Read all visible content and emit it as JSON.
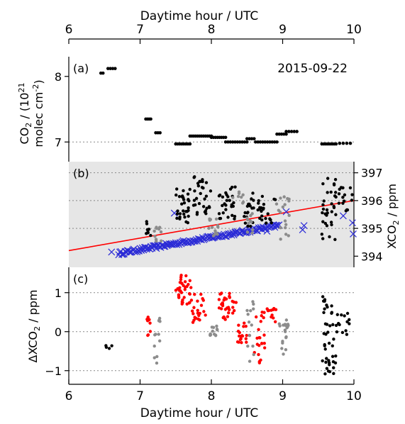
{
  "chart_data": {
    "type": "scatter",
    "date": "2015-09-22",
    "x_axis": {
      "label": "Daytime hour / UTC",
      "range": [
        6,
        10
      ],
      "ticks": [
        6,
        7,
        8,
        9,
        10
      ],
      "tick_labels": [
        "6",
        "7",
        "8",
        "9",
        "10"
      ]
    },
    "panels": [
      {
        "id": "a",
        "tag": "(a)",
        "ylabel_line1": "CO",
        "ylabel_sub": "2",
        "ylabel_mid": " / (10",
        "ylabel_sup": "21",
        "ylabel_line2": "molec cm",
        "ylabel_line2_sup": "-2",
        "ylabel_line2_end": ")",
        "ylim": [
          6.7,
          8.3
        ],
        "ticks": [
          7,
          8
        ],
        "tick_labels": [
          "7",
          "8"
        ],
        "gridlines": [
          7
        ],
        "series": [
          {
            "color": "#000000",
            "segments": [
              {
                "x0": 6.45,
                "x1": 6.48,
                "y": 8.05,
                "n": 2
              },
              {
                "x0": 6.55,
                "x1": 6.65,
                "y": 8.12,
                "n": 4
              },
              {
                "x0": 7.08,
                "x1": 7.15,
                "y": 7.35,
                "n": 4
              },
              {
                "x0": 7.22,
                "x1": 7.28,
                "y": 7.14,
                "n": 3
              },
              {
                "x0": 7.5,
                "x1": 7.7,
                "y": 6.97,
                "n": 8
              },
              {
                "x0": 7.7,
                "x1": 8.0,
                "y": 7.09,
                "n": 12
              },
              {
                "x0": 8.0,
                "x1": 8.2,
                "y": 7.07,
                "n": 8
              },
              {
                "x0": 8.2,
                "x1": 8.5,
                "y": 7.0,
                "n": 10
              },
              {
                "x0": 8.5,
                "x1": 8.6,
                "y": 7.05,
                "n": 4
              },
              {
                "x0": 8.62,
                "x1": 8.92,
                "y": 7.0,
                "n": 10
              },
              {
                "x0": 8.92,
                "x1": 9.05,
                "y": 7.12,
                "n": 5
              },
              {
                "x0": 9.05,
                "x1": 9.2,
                "y": 7.16,
                "n": 5
              },
              {
                "x0": 9.55,
                "x1": 9.75,
                "y": 6.97,
                "n": 8
              },
              {
                "x0": 9.8,
                "x1": 9.95,
                "y": 6.98,
                "n": 4
              }
            ]
          }
        ]
      },
      {
        "id": "b",
        "tag": "(b)",
        "ylabel": "XCO",
        "ylabel_sub": "2",
        "ylabel_end": " / ppm",
        "ylim": [
          393.6,
          397.4
        ],
        "ticks": [
          394,
          395,
          396,
          397
        ],
        "tick_labels": [
          "394",
          "395",
          "396",
          "397"
        ],
        "gridlines": [
          395,
          396,
          397
        ],
        "background": "#e6e6e6",
        "trend_line": {
          "color": "#ff0000",
          "x": [
            6,
            10
          ],
          "y": [
            394.2,
            396.0
          ]
        },
        "series": [
          {
            "color": "#000000",
            "clusters": [
              {
                "x0": 7.5,
                "x1": 7.7,
                "y0": 395.2,
                "y1": 396.5,
                "n": 30
              },
              {
                "x0": 7.75,
                "x1": 8.0,
                "y0": 395.5,
                "y1": 396.9,
                "n": 30
              },
              {
                "x0": 8.1,
                "x1": 8.35,
                "y0": 395.3,
                "y1": 396.5,
                "n": 28
              },
              {
                "x0": 8.45,
                "x1": 8.6,
                "y0": 395.0,
                "y1": 396.3,
                "n": 18
              },
              {
                "x0": 8.65,
                "x1": 8.9,
                "y0": 395.0,
                "y1": 396.2,
                "n": 22
              },
              {
                "x0": 9.55,
                "x1": 9.75,
                "y0": 394.5,
                "y1": 397.3,
                "n": 32
              },
              {
                "x0": 9.78,
                "x1": 9.98,
                "y0": 395.5,
                "y1": 396.5,
                "n": 16
              },
              {
                "x0": 7.08,
                "x1": 7.15,
                "y0": 394.6,
                "y1": 395.3,
                "n": 8
              }
            ]
          },
          {
            "color": "#8c8c8c",
            "clusters": [
              {
                "x0": 7.2,
                "x1": 7.3,
                "y0": 394.4,
                "y1": 395.1,
                "n": 10
              },
              {
                "x0": 7.95,
                "x1": 8.1,
                "y0": 394.6,
                "y1": 395.4,
                "n": 14
              },
              {
                "x0": 8.5,
                "x1": 8.58,
                "y0": 394.6,
                "y1": 395.6,
                "n": 10
              },
              {
                "x0": 8.9,
                "x1": 9.1,
                "y0": 394.6,
                "y1": 396.2,
                "n": 18
              },
              {
                "x0": 8.3,
                "x1": 8.45,
                "y0": 395.8,
                "y1": 396.5,
                "n": 8
              }
            ]
          }
        ],
        "model_series": {
          "color": "#2b2bd6",
          "marker": "x",
          "x0": 6.7,
          "x1": 8.95,
          "y0": 394.1,
          "y1": 395.1,
          "n": 150,
          "extra": [
            {
              "x": 6.6,
              "y": 394.15
            },
            {
              "x": 7.48,
              "y": 395.55
            },
            {
              "x": 9.05,
              "y": 395.6
            },
            {
              "x": 9.3,
              "y": 395.1
            },
            {
              "x": 9.28,
              "y": 394.95
            },
            {
              "x": 9.85,
              "y": 395.45
            },
            {
              "x": 9.98,
              "y": 395.2
            },
            {
              "x": 9.99,
              "y": 394.8
            },
            {
              "x": 8.78,
              "y": 394.9
            }
          ]
        }
      },
      {
        "id": "c",
        "tag": "(c)",
        "ylabel": "ΔXCO",
        "ylabel_sub": "2",
        "ylabel_end": " / ppm",
        "ylim": [
          -1.35,
          1.65
        ],
        "ticks": [
          -1,
          0,
          1
        ],
        "tick_labels": [
          "−1",
          "0",
          "1"
        ],
        "gridlines": [
          -1,
          0,
          1
        ],
        "series": [
          {
            "color": "#000000",
            "clusters": [
              {
                "x0": 6.45,
                "x1": 6.65,
                "y0": -0.45,
                "y1": -0.35,
                "n": 4
              },
              {
                "x0": 9.55,
                "x1": 9.75,
                "y0": -1.1,
                "y1": 1.1,
                "n": 40
              },
              {
                "x0": 9.75,
                "x1": 9.95,
                "y0": -0.1,
                "y1": 0.5,
                "n": 14
              }
            ]
          },
          {
            "color": "#ff0000",
            "clusters": [
              {
                "x0": 7.08,
                "x1": 7.15,
                "y0": -0.1,
                "y1": 0.4,
                "n": 10
              },
              {
                "x0": 7.5,
                "x1": 7.72,
                "y0": 0.7,
                "y1": 1.45,
                "n": 34
              },
              {
                "x0": 7.72,
                "x1": 7.92,
                "y0": 0.1,
                "y1": 1.0,
                "n": 22
              },
              {
                "x0": 8.1,
                "x1": 8.35,
                "y0": 0.3,
                "y1": 1.0,
                "n": 34
              },
              {
                "x0": 8.35,
                "x1": 8.5,
                "y0": -0.3,
                "y1": 0.3,
                "n": 18
              },
              {
                "x0": 8.6,
                "x1": 8.75,
                "y0": -0.8,
                "y1": 0.5,
                "n": 22
              },
              {
                "x0": 8.78,
                "x1": 8.92,
                "y0": 0.1,
                "y1": 0.6,
                "n": 12
              }
            ]
          },
          {
            "color": "#8c8c8c",
            "clusters": [
              {
                "x0": 7.2,
                "x1": 7.28,
                "y0": -0.85,
                "y1": 0.4,
                "n": 12
              },
              {
                "x0": 7.95,
                "x1": 8.1,
                "y0": -0.1,
                "y1": 0.15,
                "n": 14
              },
              {
                "x0": 8.5,
                "x1": 8.6,
                "y0": -0.9,
                "y1": 0.8,
                "n": 14
              },
              {
                "x0": 8.95,
                "x1": 9.1,
                "y0": -0.6,
                "y1": 0.3,
                "n": 20
              }
            ]
          }
        ]
      }
    ]
  }
}
